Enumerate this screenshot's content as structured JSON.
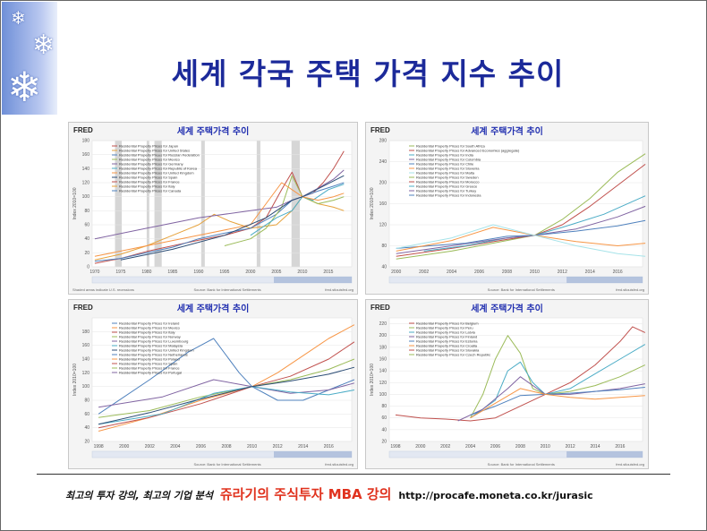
{
  "slide": {
    "title": "세계 각국 주택 가격 지수 추이",
    "footer": {
      "text1": "최고의 투자 강의, 최고의 기업 분석",
      "text2": "쥬라기의 주식투자 MBA 강의",
      "url": "http://procafe.moneta.co.kr/jurasic"
    },
    "colors": {
      "title": "#1c2a9a",
      "footer_accent": "#e0321e",
      "sidebar": "#8aa3e2"
    },
    "icons": [
      "snowflake-icon",
      "snowflake-icon",
      "snowflake-icon"
    ]
  },
  "chart_data": [
    {
      "type": "line",
      "logo": "FRED",
      "title": "세계 주택가격 추이",
      "ylabel": "Index 2010=100",
      "x_ticks": [
        "1970",
        "1975",
        "1980",
        "1985",
        "1990",
        "1995",
        "2000",
        "2005",
        "2010",
        "2015"
      ],
      "y_ticks": [
        "180",
        "160",
        "140",
        "120",
        "100",
        "80",
        "60",
        "40",
        "20",
        "0"
      ],
      "ylim": [
        0,
        180
      ],
      "recessions": true,
      "legend": [
        "Residential Property Prices for Japan",
        "Residential Property Prices for United States",
        "Residential Property Prices for Russian Federation",
        "Residential Property Prices for Mexico",
        "Residential Property Prices for Germany",
        "Residential Property Prices for Republic of Korea",
        "Residential Property Prices for United Kingdom",
        "Residential Property Prices for Spain",
        "Residential Property Prices for France",
        "Residential Property Prices for Italy",
        "Residential Property Prices for Canada"
      ],
      "note_left": "Shaded areas indicate U.S. recessions",
      "source": "Source: Bank for International Settlements",
      "site": "fred.stlouisfed.org",
      "series": [
        {
          "color": "#c0504d",
          "x": [
            1970,
            1975,
            1980,
            1985,
            1990,
            1995,
            2000,
            2003,
            2006,
            2008,
            2010,
            2012,
            2014,
            2016,
            2018
          ],
          "values": [
            5,
            12,
            22,
            30,
            38,
            45,
            55,
            70,
            110,
            135,
            100,
            105,
            120,
            140,
            165
          ]
        },
        {
          "color": "#e6a23c",
          "x": [
            1970,
            1975,
            1980,
            1985,
            1990,
            1993,
            1996,
            2000,
            2005,
            2008,
            2010,
            2013,
            2016,
            2018
          ],
          "values": [
            10,
            18,
            30,
            45,
            60,
            75,
            65,
            55,
            60,
            80,
            100,
            90,
            85,
            80
          ]
        },
        {
          "color": "#4f81bd",
          "x": [
            1970,
            1975,
            1980,
            1985,
            1990,
            1995,
            2000,
            2005,
            2008,
            2010,
            2013,
            2016,
            2018
          ],
          "values": [
            8,
            12,
            20,
            28,
            40,
            48,
            55,
            75,
            95,
            100,
            108,
            115,
            120
          ]
        },
        {
          "color": "#9bbb59",
          "x": [
            1995,
            2000,
            2003,
            2006,
            2008,
            2010,
            2013,
            2016,
            2018
          ],
          "values": [
            30,
            40,
            55,
            85,
            130,
            100,
            90,
            95,
            100
          ]
        },
        {
          "color": "#8064a2",
          "x": [
            1970,
            1980,
            1990,
            2000,
            2005,
            2008,
            2010,
            2013,
            2016,
            2018
          ],
          "values": [
            40,
            55,
            70,
            80,
            85,
            95,
            100,
            112,
            125,
            138
          ]
        },
        {
          "color": "#4bacc6",
          "x": [
            2000,
            2005,
            2008,
            2010,
            2012,
            2015,
            2018
          ],
          "values": [
            45,
            70,
            80,
            100,
            95,
            110,
            118
          ]
        },
        {
          "color": "#f79646",
          "x": [
            1970,
            1980,
            1990,
            2000,
            2006,
            2008,
            2010,
            2013,
            2016,
            2018
          ],
          "values": [
            15,
            30,
            45,
            60,
            120,
            110,
            100,
            95,
            100,
            105
          ]
        },
        {
          "color": "#2c4d75",
          "x": [
            1975,
            1985,
            1995,
            2003,
            2008,
            2010,
            2014,
            2018
          ],
          "values": [
            10,
            25,
            45,
            70,
            95,
            100,
            115,
            130
          ]
        }
      ]
    },
    {
      "type": "line",
      "logo": "FRED",
      "title": "세계 주택가격 추이",
      "ylabel": "Index 2010=100",
      "x_ticks": [
        "2000",
        "2002",
        "2004",
        "2006",
        "2008",
        "2010",
        "2012",
        "2014",
        "2016"
      ],
      "y_ticks": [
        "280",
        "240",
        "200",
        "160",
        "120",
        "80",
        "40"
      ],
      "ylim": [
        40,
        280
      ],
      "legend": [
        "Residential Property Prices for South Africa",
        "Residential Property Prices for Advanced Economies (aggregate)",
        "Residential Property Prices for India",
        "Residential Property Prices for Colombia",
        "Residential Property Prices for Chile",
        "Residential Property Prices for Slovenia",
        "Residential Property Prices for Malta",
        "Residential Property Prices for Sweden",
        "Residential Property Prices for Morocco",
        "Residential Property Prices for Greece",
        "Residential Property Prices for Turkey",
        "Residential Property Prices for Indonesia"
      ],
      "source": "Source: Bank for International Settlements",
      "site": "fred.stlouisfed.org",
      "series": [
        {
          "color": "#9bbb59",
          "x": [
            2000,
            2004,
            2008,
            2010,
            2012,
            2014,
            2016,
            2018
          ],
          "values": [
            55,
            70,
            90,
            100,
            130,
            170,
            220,
            255
          ]
        },
        {
          "color": "#c0504d",
          "x": [
            2000,
            2004,
            2008,
            2010,
            2012,
            2014,
            2016,
            2018
          ],
          "values": [
            60,
            75,
            92,
            100,
            120,
            155,
            195,
            235
          ]
        },
        {
          "color": "#4bacc6",
          "x": [
            2002,
            2005,
            2008,
            2010,
            2012,
            2015,
            2018
          ],
          "values": [
            70,
            80,
            95,
            100,
            115,
            140,
            175
          ]
        },
        {
          "color": "#8064a2",
          "x": [
            2000,
            2004,
            2008,
            2010,
            2013,
            2016,
            2018
          ],
          "values": [
            65,
            80,
            95,
            100,
            112,
            135,
            155
          ]
        },
        {
          "color": "#4f81bd",
          "x": [
            2000,
            2005,
            2008,
            2010,
            2013,
            2016,
            2018
          ],
          "values": [
            75,
            85,
            98,
            100,
            108,
            118,
            128
          ]
        },
        {
          "color": "#f79646",
          "x": [
            2000,
            2004,
            2007,
            2010,
            2013,
            2016,
            2018
          ],
          "values": [
            70,
            90,
            115,
            100,
            88,
            80,
            85
          ]
        },
        {
          "color": "#a6e3e9",
          "x": [
            2000,
            2004,
            2007,
            2010,
            2013,
            2016,
            2018
          ],
          "values": [
            75,
            95,
            120,
            100,
            80,
            65,
            60
          ]
        }
      ]
    },
    {
      "type": "line",
      "logo": "FRED",
      "title": "세계 주택가격 추이",
      "ylabel": "Index 2010=100",
      "x_ticks": [
        "1998",
        "2000",
        "2002",
        "2004",
        "2006",
        "2008",
        "2010",
        "2012",
        "2014",
        "2016"
      ],
      "y_ticks": [
        "180",
        "160",
        "140",
        "120",
        "100",
        "80",
        "60",
        "40",
        "20"
      ],
      "ylim": [
        20,
        200
      ],
      "legend": [
        "Residential Property Prices for Ireland",
        "Residential Property Prices for Mexico",
        "Residential Property Prices for Italy",
        "Residential Property Prices for Norway",
        "Residential Property Prices for Luxembourg",
        "Residential Property Prices for Malaysia",
        "Residential Property Prices for United Kingdom",
        "Residential Property Prices for Netherlands",
        "Residential Property Prices for Poland",
        "Residential Property Prices for Spain",
        "Residential Property Prices for France",
        "Residential Property Prices for Portugal"
      ],
      "source": "Source: Bank for International Settlements",
      "site": "fred.stlouisfed.org",
      "series": [
        {
          "color": "#4f81bd",
          "x": [
            1998,
            2002,
            2005,
            2007,
            2009,
            2010,
            2012,
            2014,
            2016,
            2018
          ],
          "values": [
            60,
            110,
            150,
            170,
            120,
            100,
            80,
            80,
            95,
            110
          ]
        },
        {
          "color": "#f79646",
          "x": [
            1998,
            2002,
            2006,
            2010,
            2012,
            2014,
            2016,
            2018
          ],
          "values": [
            35,
            55,
            80,
            100,
            120,
            145,
            170,
            190
          ]
        },
        {
          "color": "#c0504d",
          "x": [
            1998,
            2002,
            2006,
            2010,
            2013,
            2016,
            2018
          ],
          "values": [
            40,
            55,
            75,
            100,
            115,
            140,
            165
          ]
        },
        {
          "color": "#9bbb59",
          "x": [
            1998,
            2002,
            2006,
            2010,
            2013,
            2016,
            2018
          ],
          "values": [
            55,
            65,
            85,
            100,
            110,
            125,
            140
          ]
        },
        {
          "color": "#8064a2",
          "x": [
            1998,
            2003,
            2007,
            2010,
            2013,
            2016,
            2018
          ],
          "values": [
            70,
            85,
            110,
            100,
            90,
            95,
            105
          ]
        },
        {
          "color": "#4bacc6",
          "x": [
            1998,
            2003,
            2007,
            2010,
            2013,
            2016,
            2018
          ],
          "values": [
            45,
            60,
            90,
            100,
            92,
            88,
            95
          ]
        },
        {
          "color": "#2c4d75",
          "x": [
            1998,
            2002,
            2006,
            2010,
            2013,
            2016,
            2018
          ],
          "values": [
            45,
            62,
            82,
            100,
            108,
            118,
            128
          ]
        }
      ]
    },
    {
      "type": "line",
      "logo": "FRED",
      "title": "세계 주택가격 추이",
      "ylabel": "Index 2010=100",
      "x_ticks": [
        "1998",
        "2000",
        "2002",
        "2004",
        "2006",
        "2008",
        "2010",
        "2012",
        "2014",
        "2016"
      ],
      "y_ticks": [
        "220",
        "200",
        "180",
        "160",
        "140",
        "120",
        "100",
        "80",
        "60",
        "40",
        "20"
      ],
      "ylim": [
        20,
        230
      ],
      "legend": [
        "Residential Property Prices for Belgium",
        "Residential Property Prices for Peru",
        "Residential Property Prices for Latvia",
        "Residential Property Prices for Finland",
        "Residential Property Prices for Estonia",
        "Residential Property Prices for Croatia",
        "Residential Property Prices for Slovakia",
        "Residential Property Prices for Czech Republic"
      ],
      "source": "Source: Bank for International Settlements",
      "site": "fred.stlouisfed.org",
      "series": [
        {
          "color": "#c0504d",
          "x": [
            1998,
            2000,
            2002,
            2004,
            2006,
            2008,
            2010,
            2012,
            2014,
            2016,
            2017,
            2018
          ],
          "values": [
            65,
            60,
            58,
            55,
            60,
            80,
            100,
            120,
            150,
            190,
            215,
            205
          ]
        },
        {
          "color": "#9bbb59",
          "x": [
            2004,
            2005,
            2006,
            2007,
            2008,
            2009,
            2010,
            2012,
            2014,
            2016,
            2018
          ],
          "values": [
            60,
            100,
            160,
            200,
            170,
            110,
            100,
            105,
            115,
            130,
            150
          ]
        },
        {
          "color": "#4bacc6",
          "x": [
            2004,
            2006,
            2007,
            2008,
            2009,
            2010,
            2012,
            2014,
            2016,
            2018
          ],
          "values": [
            60,
            90,
            140,
            155,
            120,
            100,
            110,
            135,
            160,
            185
          ]
        },
        {
          "color": "#8064a2",
          "x": [
            2003,
            2005,
            2007,
            2008,
            2010,
            2012,
            2014,
            2016,
            2018
          ],
          "values": [
            55,
            75,
            110,
            130,
            100,
            100,
            105,
            110,
            118
          ]
        },
        {
          "color": "#4f81bd",
          "x": [
            2004,
            2006,
            2008,
            2010,
            2012,
            2014,
            2016,
            2018
          ],
          "values": [
            65,
            80,
            98,
            100,
            102,
            105,
            108,
            112
          ]
        },
        {
          "color": "#f79646",
          "x": [
            2004,
            2006,
            2008,
            2010,
            2012,
            2014,
            2016,
            2018
          ],
          "values": [
            60,
            85,
            110,
            100,
            95,
            92,
            95,
            98
          ]
        }
      ]
    }
  ]
}
